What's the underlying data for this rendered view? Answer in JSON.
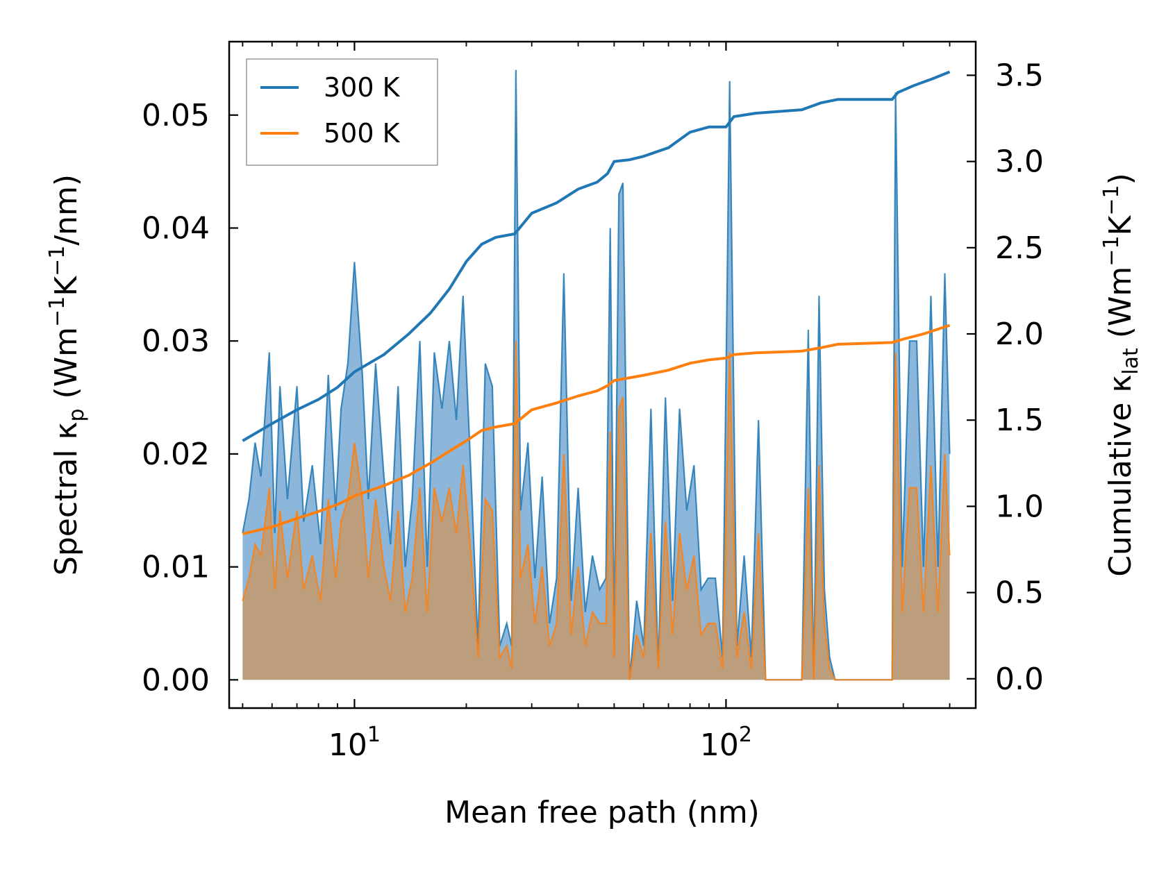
{
  "chart_data": {
    "type": "area+line",
    "title": "",
    "xlabel": "Mean free path (nm)",
    "ylabel_left": {
      "prefix": "Spectral κ",
      "sub": "p",
      "units_pre": " (Wm",
      "sup1": "−1",
      "mid": "K",
      "sup2": "−1",
      "units_post": "/nm)"
    },
    "ylabel_right": {
      "prefix": "Cumulative κ",
      "sub": "lat",
      "units_pre": " (Wm",
      "sup1": "−1",
      "mid": "K",
      "sup2": "−1",
      "units_post": ")"
    },
    "xscale": "log",
    "xlim": [
      4.6,
      470
    ],
    "ylim_left": [
      -0.0025,
      0.0565
    ],
    "ylim_right": [
      -0.17,
      3.695
    ],
    "x_ticks": [
      {
        "value": 10,
        "base": "10",
        "exp": "1"
      },
      {
        "value": 100,
        "base": "10",
        "exp": "2"
      }
    ],
    "y_ticks_left": [
      "0.00",
      "0.01",
      "0.02",
      "0.03",
      "0.04",
      "0.05"
    ],
    "y_ticks_right": [
      "0.0",
      "0.5",
      "1.0",
      "1.5",
      "2.0",
      "2.5",
      "3.0",
      "3.5"
    ],
    "legend": {
      "position": "top-left",
      "entries": [
        "300 K",
        "500 K"
      ]
    },
    "colors": {
      "300 K": "#1f77b4",
      "500 K": "#ff7f0e",
      "fill_300": "#7fafd6",
      "fill_500": "#c49a6c"
    },
    "series": [
      {
        "name": "300 K",
        "axis": "left",
        "kind": "spectral",
        "points": [
          [
            5.0,
            0.013
          ],
          [
            5.2,
            0.016
          ],
          [
            5.4,
            0.021
          ],
          [
            5.6,
            0.018
          ],
          [
            5.9,
            0.029
          ],
          [
            6.1,
            0.013
          ],
          [
            6.3,
            0.026
          ],
          [
            6.6,
            0.016
          ],
          [
            7.0,
            0.026
          ],
          [
            7.3,
            0.014
          ],
          [
            7.7,
            0.019
          ],
          [
            8.1,
            0.012
          ],
          [
            8.5,
            0.027
          ],
          [
            8.9,
            0.015
          ],
          [
            9.2,
            0.024
          ],
          [
            9.6,
            0.028
          ],
          [
            10.0,
            0.037
          ],
          [
            10.5,
            0.027
          ],
          [
            10.9,
            0.016
          ],
          [
            11.4,
            0.028
          ],
          [
            12.0,
            0.018
          ],
          [
            12.5,
            0.012
          ],
          [
            13.1,
            0.026
          ],
          [
            13.7,
            0.01
          ],
          [
            14.3,
            0.016
          ],
          [
            15.0,
            0.03
          ],
          [
            15.7,
            0.01
          ],
          [
            16.4,
            0.029
          ],
          [
            17.2,
            0.024
          ],
          [
            18.0,
            0.03
          ],
          [
            18.8,
            0.023
          ],
          [
            19.6,
            0.034
          ],
          [
            20.6,
            0.018
          ],
          [
            21.5,
            0.003
          ],
          [
            22.5,
            0.028
          ],
          [
            23.5,
            0.026
          ],
          [
            24.6,
            0.003
          ],
          [
            25.7,
            0.005
          ],
          [
            26.5,
            0.003
          ],
          [
            27.2,
            0.054
          ],
          [
            28.0,
            0.015
          ],
          [
            29.3,
            0.021
          ],
          [
            30.6,
            0.009
          ],
          [
            32.0,
            0.018
          ],
          [
            33.5,
            0.005
          ],
          [
            35.0,
            0.009
          ],
          [
            36.6,
            0.036
          ],
          [
            38.3,
            0.007
          ],
          [
            40.0,
            0.017
          ],
          [
            41.8,
            0.006
          ],
          [
            43.7,
            0.011
          ],
          [
            45.7,
            0.008
          ],
          [
            47.5,
            0.009
          ],
          [
            48.8,
            0.04
          ],
          [
            50.0,
            0.003
          ],
          [
            51.5,
            0.043
          ],
          [
            52.8,
            0.044
          ],
          [
            55.0,
            0.0
          ],
          [
            57.5,
            0.007
          ],
          [
            60.1,
            0.003
          ],
          [
            62.8,
            0.024
          ],
          [
            65.7,
            0.001
          ],
          [
            68.7,
            0.025
          ],
          [
            71.8,
            0.007
          ],
          [
            75.0,
            0.024
          ],
          [
            78.4,
            0.015
          ],
          [
            82.0,
            0.019
          ],
          [
            85.7,
            0.008
          ],
          [
            89.5,
            0.009
          ],
          [
            93.6,
            0.009
          ],
          [
            97.9,
            0.002
          ],
          [
            102.3,
            0.053
          ],
          [
            107.0,
            0.003
          ],
          [
            111.9,
            0.011
          ],
          [
            117.0,
            0.002
          ],
          [
            122.3,
            0.023
          ],
          [
            127.8,
            0.0
          ],
          [
            160.0,
            0.0
          ],
          [
            166.5,
            0.031
          ],
          [
            172.2,
            0.0
          ],
          [
            178.0,
            0.034
          ],
          [
            184.0,
            0.008
          ],
          [
            190.0,
            0.002
          ],
          [
            196.5,
            0.0
          ],
          [
            280.0,
            0.0
          ],
          [
            286.0,
            0.052
          ],
          [
            298.0,
            0.01
          ],
          [
            312.0,
            0.03
          ],
          [
            326.0,
            0.03
          ],
          [
            340.0,
            0.01
          ],
          [
            356.0,
            0.034
          ],
          [
            372.0,
            0.01
          ],
          [
            388.0,
            0.036
          ],
          [
            400.0,
            0.02
          ]
        ]
      },
      {
        "name": "500 K",
        "axis": "left",
        "kind": "spectral",
        "points": [
          [
            5.0,
            0.007
          ],
          [
            5.2,
            0.009
          ],
          [
            5.4,
            0.012
          ],
          [
            5.6,
            0.011
          ],
          [
            5.9,
            0.017
          ],
          [
            6.1,
            0.008
          ],
          [
            6.3,
            0.015
          ],
          [
            6.6,
            0.009
          ],
          [
            7.0,
            0.015
          ],
          [
            7.3,
            0.008
          ],
          [
            7.7,
            0.011
          ],
          [
            8.1,
            0.007
          ],
          [
            8.5,
            0.016
          ],
          [
            8.9,
            0.009
          ],
          [
            9.2,
            0.014
          ],
          [
            9.6,
            0.016
          ],
          [
            10.0,
            0.021
          ],
          [
            10.5,
            0.016
          ],
          [
            10.9,
            0.009
          ],
          [
            11.4,
            0.016
          ],
          [
            12.0,
            0.01
          ],
          [
            12.5,
            0.007
          ],
          [
            13.1,
            0.015
          ],
          [
            13.7,
            0.006
          ],
          [
            14.3,
            0.009
          ],
          [
            15.0,
            0.017
          ],
          [
            15.7,
            0.006
          ],
          [
            16.4,
            0.017
          ],
          [
            17.2,
            0.014
          ],
          [
            18.0,
            0.017
          ],
          [
            18.8,
            0.013
          ],
          [
            19.6,
            0.019
          ],
          [
            20.6,
            0.011
          ],
          [
            21.5,
            0.002
          ],
          [
            22.5,
            0.016
          ],
          [
            23.5,
            0.015
          ],
          [
            24.6,
            0.002
          ],
          [
            25.7,
            0.003
          ],
          [
            26.5,
            0.001
          ],
          [
            27.2,
            0.03
          ],
          [
            28.0,
            0.009
          ],
          [
            29.3,
            0.012
          ],
          [
            30.6,
            0.005
          ],
          [
            32.0,
            0.01
          ],
          [
            33.5,
            0.003
          ],
          [
            35.0,
            0.005
          ],
          [
            36.6,
            0.02
          ],
          [
            38.3,
            0.004
          ],
          [
            40.0,
            0.01
          ],
          [
            41.8,
            0.003
          ],
          [
            43.7,
            0.006
          ],
          [
            45.7,
            0.005
          ],
          [
            47.5,
            0.005
          ],
          [
            48.8,
            0.022
          ],
          [
            50.0,
            0.002
          ],
          [
            51.5,
            0.024
          ],
          [
            52.8,
            0.025
          ],
          [
            55.0,
            0.0
          ],
          [
            57.5,
            0.004
          ],
          [
            60.1,
            0.002
          ],
          [
            62.8,
            0.013
          ],
          [
            65.7,
            0.001
          ],
          [
            68.7,
            0.014
          ],
          [
            71.8,
            0.004
          ],
          [
            75.0,
            0.013
          ],
          [
            78.4,
            0.008
          ],
          [
            82.0,
            0.011
          ],
          [
            85.7,
            0.004
          ],
          [
            89.5,
            0.005
          ],
          [
            93.6,
            0.005
          ],
          [
            97.9,
            0.001
          ],
          [
            102.3,
            0.029
          ],
          [
            107.0,
            0.002
          ],
          [
            111.9,
            0.006
          ],
          [
            117.0,
            0.001
          ],
          [
            122.3,
            0.013
          ],
          [
            127.8,
            0.0
          ],
          [
            160.0,
            0.0
          ],
          [
            166.5,
            0.017
          ],
          [
            172.2,
            0.0
          ],
          [
            178.0,
            0.019
          ],
          [
            184.0,
            0.005
          ],
          [
            190.0,
            0.001
          ],
          [
            196.5,
            0.0
          ],
          [
            280.0,
            0.0
          ],
          [
            286.0,
            0.029
          ],
          [
            298.0,
            0.006
          ],
          [
            312.0,
            0.017
          ],
          [
            326.0,
            0.017
          ],
          [
            340.0,
            0.006
          ],
          [
            356.0,
            0.019
          ],
          [
            372.0,
            0.006
          ],
          [
            388.0,
            0.02
          ],
          [
            400.0,
            0.011
          ]
        ]
      },
      {
        "name": "300 K",
        "axis": "right",
        "kind": "cumulative",
        "points": [
          [
            5.0,
            1.38
          ],
          [
            6.0,
            1.48
          ],
          [
            7.0,
            1.56
          ],
          [
            8.0,
            1.62
          ],
          [
            9.0,
            1.69
          ],
          [
            10.0,
            1.78
          ],
          [
            12.0,
            1.88
          ],
          [
            14.0,
            2.0
          ],
          [
            16.0,
            2.12
          ],
          [
            18.0,
            2.26
          ],
          [
            20.0,
            2.42
          ],
          [
            22.0,
            2.52
          ],
          [
            24.0,
            2.56
          ],
          [
            27.0,
            2.58
          ],
          [
            30.0,
            2.7
          ],
          [
            35.0,
            2.76
          ],
          [
            40.0,
            2.84
          ],
          [
            45.0,
            2.88
          ],
          [
            48.0,
            2.93
          ],
          [
            50.0,
            3.0
          ],
          [
            55.0,
            3.01
          ],
          [
            60.0,
            3.03
          ],
          [
            70.0,
            3.08
          ],
          [
            80.0,
            3.17
          ],
          [
            90.0,
            3.2
          ],
          [
            100.0,
            3.2
          ],
          [
            105.0,
            3.26
          ],
          [
            120.0,
            3.28
          ],
          [
            160.0,
            3.3
          ],
          [
            180.0,
            3.34
          ],
          [
            200.0,
            3.36
          ],
          [
            280.0,
            3.36
          ],
          [
            290.0,
            3.4
          ],
          [
            320.0,
            3.44
          ],
          [
            360.0,
            3.48
          ],
          [
            400.0,
            3.52
          ]
        ]
      },
      {
        "name": "500 K",
        "axis": "right",
        "kind": "cumulative",
        "points": [
          [
            5.0,
            0.84
          ],
          [
            6.0,
            0.88
          ],
          [
            7.0,
            0.93
          ],
          [
            8.0,
            0.97
          ],
          [
            9.0,
            1.01
          ],
          [
            10.0,
            1.06
          ],
          [
            12.0,
            1.12
          ],
          [
            14.0,
            1.18
          ],
          [
            16.0,
            1.25
          ],
          [
            18.0,
            1.32
          ],
          [
            20.0,
            1.38
          ],
          [
            22.0,
            1.44
          ],
          [
            24.0,
            1.46
          ],
          [
            27.0,
            1.48
          ],
          [
            30.0,
            1.56
          ],
          [
            35.0,
            1.6
          ],
          [
            40.0,
            1.64
          ],
          [
            45.0,
            1.67
          ],
          [
            48.0,
            1.7
          ],
          [
            50.0,
            1.73
          ],
          [
            60.0,
            1.76
          ],
          [
            70.0,
            1.79
          ],
          [
            80.0,
            1.83
          ],
          [
            90.0,
            1.85
          ],
          [
            100.0,
            1.86
          ],
          [
            105.0,
            1.88
          ],
          [
            120.0,
            1.89
          ],
          [
            160.0,
            1.9
          ],
          [
            180.0,
            1.92
          ],
          [
            200.0,
            1.94
          ],
          [
            280.0,
            1.95
          ],
          [
            300.0,
            1.97
          ],
          [
            340.0,
            2.0
          ],
          [
            400.0,
            2.05
          ]
        ]
      }
    ]
  }
}
